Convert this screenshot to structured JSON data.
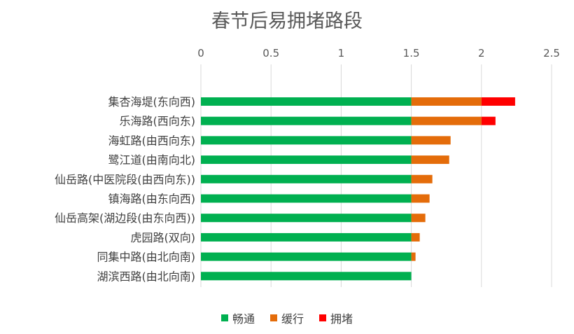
{
  "chart_data": {
    "type": "bar",
    "orientation": "horizontal",
    "stacked": true,
    "title": "春节后易拥堵路段",
    "categories": [
      "集杏海堤(东向西)",
      "乐海路(西向东)",
      "海虹路(由西向东)",
      "鹭江道(由南向北)",
      "仙岳路(中医院段(由西向东))",
      "镇海路(由东向西)",
      "仙岳高架(湖边段(由东向西))",
      "虎园路(双向)",
      "同集中路(由北向南)",
      "湖滨西路(由北向南)"
    ],
    "series": [
      {
        "name": "畅通",
        "color": "#00b050",
        "values": [
          1.5,
          1.5,
          1.5,
          1.5,
          1.5,
          1.5,
          1.5,
          1.5,
          1.5,
          1.5
        ]
      },
      {
        "name": "缓行",
        "color": "#e46c0a",
        "values": [
          0.5,
          0.5,
          0.28,
          0.27,
          0.15,
          0.13,
          0.1,
          0.06,
          0.03,
          0
        ]
      },
      {
        "name": "拥堵",
        "color": "#ff0000",
        "values": [
          0.24,
          0.1,
          0,
          0,
          0,
          0,
          0,
          0,
          0,
          0
        ]
      }
    ],
    "xlim": [
      0,
      2.5
    ],
    "xticks": [
      "0",
      "0.5",
      "1",
      "1.5",
      "2",
      "2.5"
    ],
    "xaxis_position": "top",
    "grid": true,
    "legend": "bottom"
  }
}
